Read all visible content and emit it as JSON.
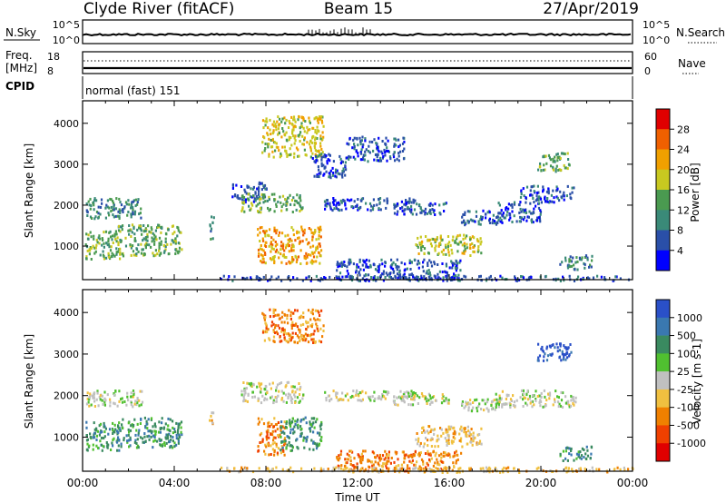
{
  "header": {
    "station": "Clyde River (fitACF)",
    "beam": "Beam 15",
    "date": "27/Apr/2019"
  },
  "noise_panel": {
    "left_label": "N.Sky",
    "right_label": "N.Search",
    "left_ticks": [
      "10^5",
      "10^0"
    ],
    "right_ticks": [
      "10^5",
      "10^0"
    ]
  },
  "freq_panel": {
    "left_label_1": "Freq.",
    "left_label_2": "[MHz]",
    "right_label": "Nave",
    "left_ticks": [
      "18",
      "8"
    ],
    "right_ticks": [
      "60",
      "0"
    ]
  },
  "cpid_panel": {
    "label": "CPID",
    "mode": "normal (fast) 151"
  },
  "chart_data": [
    {
      "type": "heatmap",
      "name": "power",
      "ylabel": "Slant Range [km]",
      "ylim": [
        180,
        4550
      ],
      "yticks": [
        "1000",
        "2000",
        "3000",
        "4000"
      ],
      "xlim": [
        0,
        24
      ],
      "colorbar_label": "Power [dB]",
      "colorbar_ticks": [
        "4",
        "8",
        "12",
        "16",
        "20",
        "24",
        "28"
      ],
      "colors": [
        "#0000ff",
        "#2a4fa8",
        "#3a8a78",
        "#4a9a50",
        "#c8c820",
        "#f0a000",
        "#f06000",
        "#e00000"
      ],
      "regions": [
        {
          "t": [
            0.1,
            2.6
          ],
          "r": [
            1700,
            2200
          ],
          "level": 2
        },
        {
          "t": [
            0.1,
            1.6
          ],
          "r": [
            700,
            1400
          ],
          "level": 3
        },
        {
          "t": [
            1.5,
            4.3
          ],
          "r": [
            780,
            1550
          ],
          "level": 3
        },
        {
          "t": [
            5.5,
            5.7
          ],
          "r": [
            1200,
            1800
          ],
          "level": 2
        },
        {
          "t": [
            6.5,
            8.0
          ],
          "r": [
            2100,
            2600
          ],
          "level": 1
        },
        {
          "t": [
            6.9,
            9.6
          ],
          "r": [
            1850,
            2300
          ],
          "level": 3
        },
        {
          "t": [
            7.6,
            10.4
          ],
          "r": [
            600,
            1500
          ],
          "level": 5
        },
        {
          "t": [
            7.8,
            10.5
          ],
          "r": [
            3200,
            4200
          ],
          "level": 4
        },
        {
          "t": [
            10.0,
            11.5
          ],
          "r": [
            2700,
            3300
          ],
          "level": 1
        },
        {
          "t": [
            11.5,
            14.0
          ],
          "r": [
            3100,
            3700
          ],
          "level": 1
        },
        {
          "t": [
            10.5,
            14.5
          ],
          "r": [
            1900,
            2200
          ],
          "level": 1
        },
        {
          "t": [
            13.5,
            16.0
          ],
          "r": [
            1800,
            2100
          ],
          "level": 1
        },
        {
          "t": [
            14.5,
            17.4
          ],
          "r": [
            800,
            1300
          ],
          "level": 4
        },
        {
          "t": [
            16.5,
            18.5
          ],
          "r": [
            1550,
            1900
          ],
          "level": 1
        },
        {
          "t": [
            18.0,
            20.0
          ],
          "r": [
            1600,
            2100
          ],
          "level": 1
        },
        {
          "t": [
            19.0,
            21.5
          ],
          "r": [
            2100,
            2500
          ],
          "level": 1
        },
        {
          "t": [
            19.8,
            21.3
          ],
          "r": [
            2850,
            3300
          ],
          "level": 3
        },
        {
          "t": [
            20.8,
            22.2
          ],
          "r": [
            450,
            800
          ],
          "level": 2
        },
        {
          "t": [
            11.0,
            16.5
          ],
          "r": [
            200,
            700
          ],
          "level": 1
        },
        {
          "t": [
            6.0,
            24.0
          ],
          "r": [
            180,
            300
          ],
          "level": 1
        }
      ]
    },
    {
      "type": "heatmap",
      "name": "velocity",
      "ylabel": "Slant Range [km]",
      "ylim": [
        180,
        4550
      ],
      "yticks": [
        "1000",
        "2000",
        "3000",
        "4000"
      ],
      "xlim": [
        0,
        24
      ],
      "xticks": [
        "00:00",
        "04:00",
        "08:00",
        "12:00",
        "16:00",
        "20:00",
        "00:00"
      ],
      "xlabel": "Time UT",
      "colorbar_label": "Velocity [m s-1]",
      "colorbar_ticks": [
        "1000",
        "500",
        "100",
        "25",
        "-25",
        "-100",
        "-500",
        "-1000"
      ],
      "colors": [
        "#2a50c8",
        "#3a78b0",
        "#3a8a60",
        "#50c030",
        "#c0c0c0",
        "#f0c040",
        "#f08000",
        "#f04000",
        "#e00000"
      ],
      "regions": [
        {
          "t": [
            0.1,
            2.6
          ],
          "r": [
            1750,
            2150
          ],
          "level": 4
        },
        {
          "t": [
            0.1,
            1.6
          ],
          "r": [
            700,
            1400
          ],
          "level": 2
        },
        {
          "t": [
            1.5,
            4.3
          ],
          "r": [
            780,
            1500
          ],
          "level": 2
        },
        {
          "t": [
            5.5,
            5.7
          ],
          "r": [
            1300,
            1700
          ],
          "level": 5
        },
        {
          "t": [
            6.9,
            9.6
          ],
          "r": [
            1850,
            2350
          ],
          "level": 4
        },
        {
          "t": [
            7.6,
            8.8
          ],
          "r": [
            600,
            1500
          ],
          "level": 6
        },
        {
          "t": [
            8.6,
            10.4
          ],
          "r": [
            700,
            1500
          ],
          "level": 2
        },
        {
          "t": [
            7.8,
            10.5
          ],
          "r": [
            3300,
            4100
          ],
          "level": 6
        },
        {
          "t": [
            10.5,
            14.5
          ],
          "r": [
            1900,
            2150
          ],
          "level": 4
        },
        {
          "t": [
            13.5,
            16.0
          ],
          "r": [
            1800,
            2100
          ],
          "level": 4
        },
        {
          "t": [
            14.5,
            17.4
          ],
          "r": [
            800,
            1300
          ],
          "level": 5
        },
        {
          "t": [
            16.5,
            18.5
          ],
          "r": [
            1650,
            1950
          ],
          "level": 4
        },
        {
          "t": [
            18.0,
            21.5
          ],
          "r": [
            1750,
            2150
          ],
          "level": 4
        },
        {
          "t": [
            19.8,
            21.3
          ],
          "r": [
            2850,
            3300
          ],
          "level": 0
        },
        {
          "t": [
            20.8,
            22.2
          ],
          "r": [
            450,
            800
          ],
          "level": 2
        },
        {
          "t": [
            11.0,
            16.5
          ],
          "r": [
            200,
            700
          ],
          "level": 6
        },
        {
          "t": [
            6.0,
            24.0
          ],
          "r": [
            180,
            300
          ],
          "level": 5
        }
      ]
    }
  ]
}
